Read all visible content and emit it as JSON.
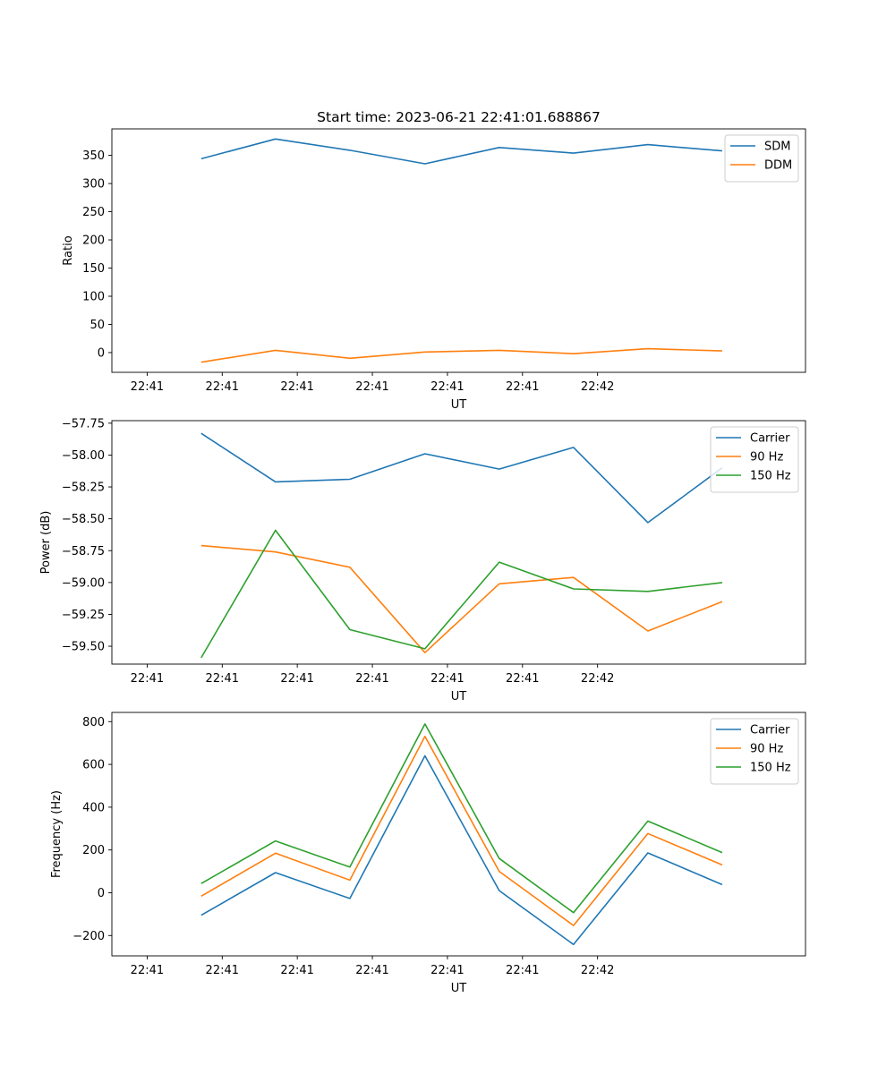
{
  "chart_data": [
    {
      "type": "line",
      "title": "Start time: 2023-06-21 22:41:01.688867",
      "xlabel": "UT",
      "ylabel": "Ratio",
      "x_tick_labels": [
        "22:41",
        "22:41",
        "22:41",
        "22:41",
        "22:41",
        "22:41",
        "22:42"
      ],
      "xlim": [
        -0.47,
        8.77
      ],
      "x": [
        0.72,
        1.71,
        2.7,
        3.7,
        4.69,
        5.68,
        6.67,
        7.66
      ],
      "ylim": [
        -35,
        397
      ],
      "y_ticks": [
        0,
        50,
        100,
        150,
        200,
        250,
        300,
        350
      ],
      "legend_position": "top-right",
      "series": [
        {
          "name": "SDM",
          "color": "#1f77b4",
          "values": [
            344,
            379,
            359,
            335,
            364,
            354,
            369,
            358
          ]
        },
        {
          "name": "DDM",
          "color": "#ff7f0e",
          "values": [
            -17,
            4,
            -10,
            1,
            4,
            -2,
            7,
            3
          ]
        }
      ]
    },
    {
      "type": "line",
      "title": "",
      "xlabel": "UT",
      "ylabel": "Power (dB)",
      "x_tick_labels": [
        "22:41",
        "22:41",
        "22:41",
        "22:41",
        "22:41",
        "22:41",
        "22:42"
      ],
      "xlim": [
        -0.47,
        8.77
      ],
      "x": [
        0.72,
        1.71,
        2.7,
        3.7,
        4.69,
        5.68,
        6.67,
        7.66
      ],
      "ylim": [
        -59.64,
        -57.73
      ],
      "y_ticks": [
        -59.5,
        -59.25,
        -59.0,
        -58.75,
        -58.5,
        -58.25,
        -58.0,
        -57.75
      ],
      "y_tick_labels": [
        "−59.50",
        "−59.25",
        "−59.00",
        "−58.75",
        "−58.50",
        "−58.25",
        "−58.00",
        "−57.75"
      ],
      "legend_position": "top-right",
      "series": [
        {
          "name": "Carrier",
          "color": "#1f77b4",
          "values": [
            -57.83,
            -58.21,
            -58.19,
            -57.99,
            -58.11,
            -57.94,
            -58.53,
            -58.1
          ]
        },
        {
          "name": "90 Hz",
          "color": "#ff7f0e",
          "values": [
            -58.71,
            -58.76,
            -58.88,
            -59.55,
            -59.01,
            -58.96,
            -59.38,
            -59.15
          ]
        },
        {
          "name": "150 Hz",
          "color": "#2ca02c",
          "values": [
            -59.59,
            -58.59,
            -59.37,
            -59.52,
            -58.84,
            -59.05,
            -59.07,
            -59.0
          ]
        }
      ]
    },
    {
      "type": "line",
      "title": "",
      "xlabel": "UT",
      "ylabel": "Frequency (Hz)",
      "x_tick_labels": [
        "22:41",
        "22:41",
        "22:41",
        "22:41",
        "22:41",
        "22:41",
        "22:42"
      ],
      "xlim": [
        -0.47,
        8.77
      ],
      "x": [
        0.72,
        1.71,
        2.7,
        3.7,
        4.69,
        5.68,
        6.67,
        7.66
      ],
      "ylim": [
        -295,
        843
      ],
      "y_ticks": [
        -200,
        0,
        200,
        400,
        600,
        800
      ],
      "y_tick_labels": [
        "−200",
        "0",
        "200",
        "400",
        "600",
        "800"
      ],
      "legend_position": "top-right",
      "series": [
        {
          "name": "Carrier",
          "color": "#1f77b4",
          "values": [
            -105,
            94,
            -27,
            640,
            10,
            -242,
            186,
            38
          ]
        },
        {
          "name": "90 Hz",
          "color": "#ff7f0e",
          "values": [
            -16,
            185,
            59,
            731,
            100,
            -153,
            277,
            130
          ]
        },
        {
          "name": "150 Hz",
          "color": "#2ca02c",
          "values": [
            43,
            242,
            120,
            789,
            160,
            -93,
            335,
            188
          ]
        }
      ]
    }
  ]
}
